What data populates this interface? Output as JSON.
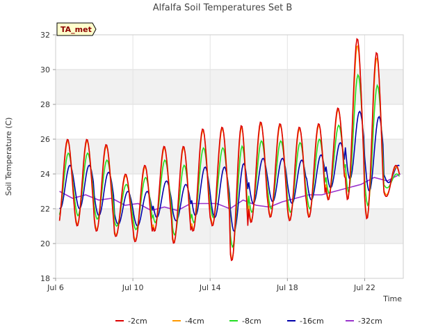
{
  "chart_data": {
    "type": "line",
    "title": "Alfalfa Soil Temperatures Set B",
    "xlabel": "Time",
    "ylabel": "Soil Temperature (C)",
    "badge": "TA_met",
    "x_ticks": [
      "Jul 6",
      "Jul 10",
      "Jul 14",
      "Jul 18",
      "Jul 22"
    ],
    "y_ticks": [
      18,
      20,
      22,
      24,
      26,
      28,
      30,
      32
    ],
    "xlim": [
      "Jul 6",
      "Jul 24"
    ],
    "ylim": [
      18,
      32
    ],
    "grid": true,
    "legend_position": "bottom",
    "cycle_days": [
      "Jul 6",
      "Jul 7",
      "Jul 8",
      "Jul 9",
      "Jul 10",
      "Jul 11",
      "Jul 12",
      "Jul 13",
      "Jul 14",
      "Jul 15",
      "Jul 16",
      "Jul 17",
      "Jul 18",
      "Jul 19",
      "Jul 20",
      "Jul 21",
      "Jul 22",
      "Jul 23"
    ],
    "series": [
      {
        "name": "-2cm",
        "color": "#dd0000",
        "daily_max": [
          26.0,
          26.0,
          25.7,
          24.0,
          24.5,
          25.6,
          25.6,
          26.6,
          26.7,
          26.8,
          27.0,
          26.9,
          26.7,
          26.9,
          27.8,
          31.8,
          31.0,
          24.5
        ],
        "daily_min": [
          21.0,
          21.0,
          20.7,
          20.4,
          20.1,
          20.7,
          20.0,
          20.7,
          21.0,
          19.0,
          21.2,
          21.5,
          21.3,
          21.5,
          22.5,
          22.5,
          21.4,
          22.7
        ]
      },
      {
        "name": "-4cm",
        "color": "#ff9900",
        "daily_max": [
          25.9,
          25.9,
          25.6,
          23.9,
          24.4,
          25.5,
          25.5,
          26.5,
          26.6,
          26.7,
          26.9,
          26.8,
          26.6,
          26.8,
          27.7,
          31.4,
          30.7,
          24.4
        ],
        "daily_min": [
          21.1,
          21.1,
          20.8,
          20.5,
          20.2,
          20.8,
          20.1,
          20.8,
          21.1,
          19.1,
          21.3,
          21.6,
          21.4,
          21.6,
          22.6,
          22.6,
          21.5,
          22.8
        ]
      },
      {
        "name": "-8cm",
        "color": "#22dd22",
        "daily_max": [
          25.2,
          25.2,
          24.8,
          23.4,
          23.8,
          24.8,
          24.5,
          25.5,
          25.5,
          25.6,
          25.9,
          25.9,
          25.8,
          26.0,
          26.8,
          29.7,
          29.1,
          24.0
        ],
        "daily_min": [
          21.6,
          21.6,
          21.4,
          21.0,
          20.8,
          21.2,
          20.5,
          21.2,
          21.5,
          19.8,
          21.8,
          22.0,
          21.8,
          22.0,
          22.9,
          23.0,
          22.2,
          23.2
        ]
      },
      {
        "name": "-16cm",
        "color": "#0000aa",
        "daily_max": [
          24.5,
          24.5,
          24.1,
          23.0,
          23.0,
          23.6,
          23.4,
          24.4,
          24.4,
          24.6,
          24.9,
          24.9,
          24.8,
          25.1,
          25.8,
          27.6,
          27.3,
          24.5
        ],
        "daily_min": [
          22.0,
          22.0,
          21.6,
          21.1,
          21.0,
          21.5,
          21.3,
          21.6,
          21.5,
          20.7,
          22.3,
          22.4,
          22.3,
          22.5,
          23.2,
          23.7,
          23.0,
          23.5
        ]
      },
      {
        "name": "-32cm",
        "color": "#9933cc",
        "values": [
          23.0,
          22.6,
          22.8,
          22.5,
          22.6,
          22.2,
          22.3,
          21.9,
          22.1,
          21.9,
          22.3,
          22.3,
          22.3,
          22.0,
          22.5,
          22.2,
          22.1,
          22.4,
          22.6,
          22.8,
          22.8,
          23.0,
          23.2,
          23.4,
          23.8,
          23.6,
          24.0
        ]
      }
    ]
  }
}
